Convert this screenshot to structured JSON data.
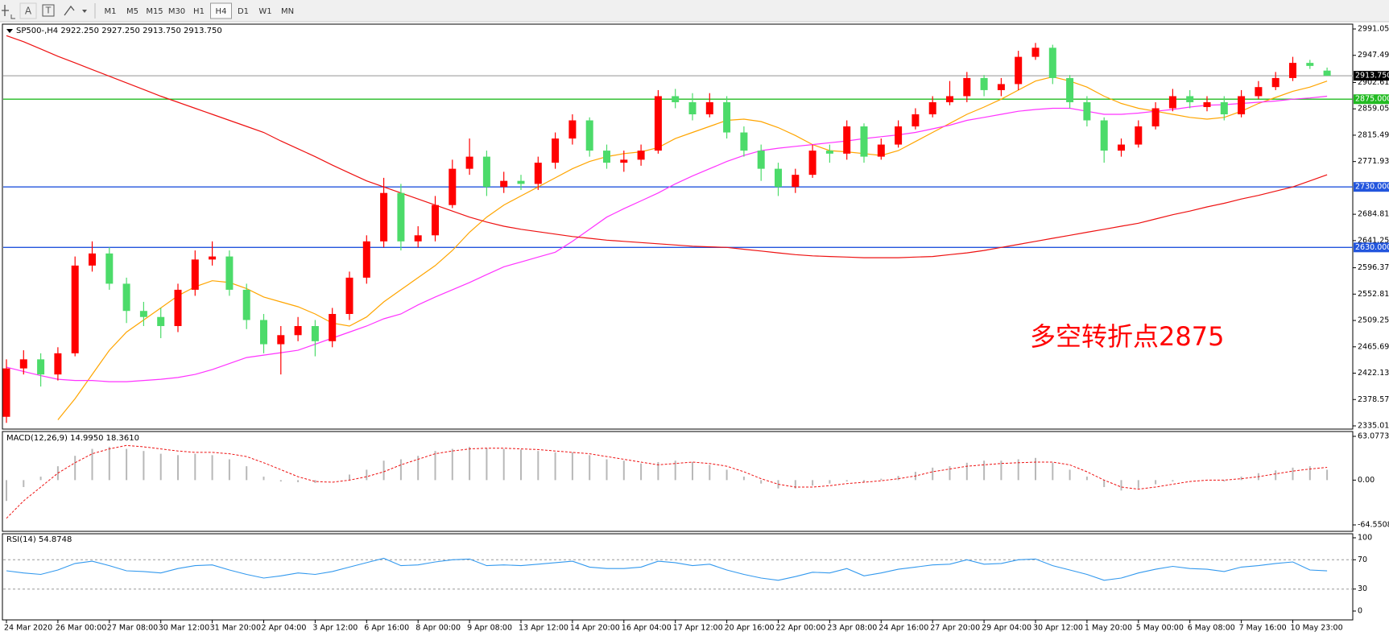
{
  "toolbar": {
    "tools": [
      "A",
      "T"
    ],
    "timeframes": [
      "M1",
      "M5",
      "M15",
      "M30",
      "H1",
      "H4",
      "D1",
      "W1",
      "MN"
    ],
    "active_timeframe": "H4"
  },
  "chart_data": [
    {
      "type": "candlestick",
      "title": "SP500-,H4  2922.250 2927.250 2913.750 2913.750",
      "annotation": "多空转折点2875",
      "annotation_color": "#ff0000",
      "categories": [
        "24 Mar 2020",
        null,
        null,
        "26 Mar 00:00",
        null,
        null,
        "27 Mar 08:00",
        null,
        null,
        "30 Mar 12:00",
        null,
        null,
        "31 Mar 20:00",
        null,
        null,
        "2 Apr 04:00",
        null,
        null,
        "3 Apr 12:00",
        null,
        null,
        "6 Apr 16:00",
        null,
        null,
        "8 Apr 00:00",
        null,
        null,
        "9 Apr 08:00",
        null,
        null,
        "13 Apr 12:00",
        null,
        null,
        "14 Apr 20:00",
        null,
        null,
        "16 Apr 04:00",
        null,
        null,
        "17 Apr 12:00",
        null,
        null,
        "20 Apr 16:00",
        null,
        null,
        "22 Apr 00:00",
        null,
        null,
        "23 Apr 08:00",
        null,
        null,
        "24 Apr 16:00",
        null,
        null,
        "27 Apr 20:00",
        null,
        null,
        "29 Apr 04:00",
        null,
        null,
        "30 Apr 12:00",
        null,
        null,
        "1 May 20:00",
        null,
        null,
        "5 May 00:00",
        null,
        null,
        "6 May 08:00",
        null,
        null,
        "7 May 16:00",
        null,
        null,
        "10 May 23:00",
        null,
        null
      ],
      "open": [
        2350,
        2430,
        2445,
        2420,
        2455,
        2600,
        2620,
        2570,
        2525,
        2515,
        2500,
        2560,
        2610,
        2615,
        2560,
        2510,
        2470,
        2485,
        2500,
        2475,
        2520,
        2580,
        2640,
        2720,
        2640,
        2650,
        2700,
        2760,
        2780,
        2730,
        2740,
        2735,
        2770,
        2810,
        2840,
        2790,
        2770,
        2775,
        2790,
        2880,
        2870,
        2850,
        2870,
        2820,
        2790,
        2760,
        2730,
        2750,
        2790,
        2785,
        2830,
        2780,
        2800,
        2830,
        2850,
        2870,
        2880,
        2910,
        2890,
        2900,
        2945,
        2960,
        2910,
        2870,
        2840,
        2790,
        2800,
        2830,
        2860,
        2880,
        2862,
        2870,
        2850,
        2880,
        2895,
        2910,
        2935,
        2922.25
      ],
      "high": [
        2445,
        2460,
        2455,
        2465,
        2615,
        2640,
        2630,
        2580,
        2540,
        2530,
        2570,
        2625,
        2640,
        2625,
        2570,
        2520,
        2500,
        2515,
        2510,
        2530,
        2590,
        2650,
        2745,
        2735,
        2665,
        2715,
        2775,
        2810,
        2790,
        2755,
        2750,
        2780,
        2820,
        2850,
        2845,
        2800,
        2790,
        2800,
        2890,
        2892,
        2885,
        2885,
        2880,
        2830,
        2800,
        2770,
        2760,
        2800,
        2800,
        2840,
        2835,
        2810,
        2840,
        2860,
        2880,
        2905,
        2920,
        2915,
        2910,
        2955,
        2968,
        2965,
        2915,
        2880,
        2845,
        2810,
        2840,
        2870,
        2892,
        2890,
        2880,
        2880,
        2890,
        2905,
        2920,
        2945,
        2940,
        2927.25
      ],
      "low": [
        2340,
        2420,
        2400,
        2410,
        2450,
        2590,
        2560,
        2505,
        2500,
        2480,
        2490,
        2550,
        2600,
        2550,
        2495,
        2455,
        2420,
        2475,
        2450,
        2465,
        2510,
        2570,
        2630,
        2625,
        2630,
        2640,
        2695,
        2750,
        2715,
        2720,
        2725,
        2725,
        2760,
        2800,
        2780,
        2760,
        2755,
        2765,
        2785,
        2860,
        2840,
        2845,
        2810,
        2780,
        2740,
        2715,
        2720,
        2745,
        2770,
        2775,
        2770,
        2775,
        2795,
        2825,
        2845,
        2865,
        2870,
        2880,
        2880,
        2890,
        2940,
        2900,
        2860,
        2830,
        2770,
        2780,
        2795,
        2825,
        2855,
        2860,
        2855,
        2840,
        2845,
        2875,
        2890,
        2905,
        2925,
        2913.75
      ],
      "close": [
        2430,
        2445,
        2420,
        2455,
        2600,
        2620,
        2570,
        2525,
        2515,
        2500,
        2560,
        2610,
        2615,
        2560,
        2510,
        2470,
        2485,
        2500,
        2475,
        2520,
        2580,
        2640,
        2720,
        2640,
        2650,
        2700,
        2760,
        2780,
        2730,
        2740,
        2735,
        2770,
        2810,
        2840,
        2790,
        2770,
        2775,
        2790,
        2880,
        2870,
        2850,
        2870,
        2820,
        2790,
        2760,
        2730,
        2750,
        2790,
        2785,
        2830,
        2780,
        2800,
        2830,
        2850,
        2870,
        2880,
        2910,
        2890,
        2900,
        2945,
        2960,
        2910,
        2870,
        2840,
        2790,
        2800,
        2830,
        2860,
        2880,
        2870,
        2870,
        2850,
        2880,
        2895,
        2910,
        2935,
        2930,
        2913.75
      ],
      "up_color": "#ff0000",
      "down_color": "#4cdb6a",
      "moving_averages": [
        {
          "color": "#ffa500",
          "values": [
            null,
            null,
            null,
            2345,
            2380,
            2420,
            2460,
            2490,
            2510,
            2530,
            2550,
            2565,
            2575,
            2572,
            2562,
            2548,
            2540,
            2532,
            2520,
            2505,
            2500,
            2515,
            2540,
            2560,
            2580,
            2600,
            2625,
            2655,
            2680,
            2700,
            2715,
            2730,
            2745,
            2760,
            2772,
            2780,
            2785,
            2788,
            2795,
            2810,
            2820,
            2830,
            2840,
            2842,
            2838,
            2828,
            2815,
            2800,
            2790,
            2788,
            2785,
            2782,
            2790,
            2805,
            2820,
            2835,
            2850,
            2862,
            2875,
            2890,
            2905,
            2912,
            2905,
            2895,
            2880,
            2868,
            2860,
            2855,
            2850,
            2845,
            2842,
            2845,
            2855,
            2868,
            2878,
            2888,
            2895,
            2905
          ]
        },
        {
          "color": "#ff33ff",
          "values": [
            2432,
            2425,
            2418,
            2412,
            2410,
            2410,
            2408,
            2408,
            2410,
            2412,
            2415,
            2420,
            2428,
            2438,
            2448,
            2452,
            2456,
            2460,
            2470,
            2480,
            2490,
            2500,
            2512,
            2520,
            2535,
            2548,
            2560,
            2572,
            2585,
            2598,
            2606,
            2614,
            2622,
            2640,
            2660,
            2680,
            2694,
            2707,
            2720,
            2735,
            2748,
            2760,
            2772,
            2782,
            2790,
            2794,
            2797,
            2800,
            2803,
            2806,
            2810,
            2813,
            2816,
            2820,
            2826,
            2832,
            2840,
            2845,
            2850,
            2855,
            2858,
            2860,
            2860,
            2855,
            2850,
            2850,
            2852,
            2855,
            2858,
            2862,
            2865,
            2866,
            2868,
            2870,
            2872,
            2875,
            2877,
            2880
          ]
        },
        {
          "color": "#ee1111",
          "values": [
            2980,
            2970,
            2958,
            2946,
            2935,
            2924,
            2913,
            2902,
            2891,
            2880,
            2870,
            2860,
            2850,
            2840,
            2830,
            2820,
            2806,
            2793,
            2780,
            2766,
            2753,
            2740,
            2730,
            2720,
            2710,
            2700,
            2690,
            2680,
            2672,
            2665,
            2660,
            2656,
            2652,
            2648,
            2645,
            2642,
            2640,
            2638,
            2636,
            2634,
            2632,
            2631,
            2630,
            2627,
            2624,
            2621,
            2618,
            2616,
            2615,
            2614,
            2613,
            2613,
            2613,
            2614,
            2615,
            2618,
            2621,
            2625,
            2630,
            2635,
            2640,
            2645,
            2650,
            2655,
            2660,
            2665,
            2670,
            2677,
            2684,
            2690,
            2697,
            2703,
            2710,
            2716,
            2723,
            2730,
            2740,
            2750
          ]
        }
      ],
      "levels": [
        {
          "value": 2913.75,
          "label": "2913.750",
          "color": "#a9a9a9",
          "box_color": "#000000"
        },
        {
          "value": 2875,
          "label": "2875.000",
          "color": "#22bb22",
          "box_color": "#22bb22"
        },
        {
          "value": 2730,
          "label": "2730.000",
          "color": "#2255dd",
          "box_color": "#2255dd"
        },
        {
          "value": 2630,
          "label": "2630.000",
          "color": "#2255dd",
          "box_color": "#2255dd"
        }
      ],
      "ylim": [
        2335.01,
        2991.05
      ],
      "yticks": [
        {
          "value": 2991.05,
          "label": "2991.050"
        },
        2947.49,
        2902.61,
        2859.05,
        2815.49,
        2771.93,
        2684.81,
        2641.25,
        2596.37,
        2552.81,
        2509.25,
        2465.69,
        2422.13,
        2378.57,
        2335.01
      ]
    },
    {
      "type": "macd",
      "title": "MACD(12,26,9) 14.9950 18.3610",
      "values": [
        -30,
        -10,
        5,
        20,
        35,
        45,
        48,
        45,
        42,
        38,
        36,
        38,
        36,
        30,
        20,
        5,
        -2,
        -3,
        -4,
        0,
        8,
        15,
        28,
        30,
        35,
        42,
        45,
        48,
        46,
        45,
        44,
        42,
        40,
        40,
        36,
        30,
        28,
        24,
        26,
        28,
        26,
        22,
        15,
        5,
        -5,
        -12,
        -12,
        -8,
        -5,
        -2,
        -3,
        2,
        6,
        12,
        18,
        20,
        25,
        28,
        28,
        30,
        32,
        25,
        15,
        5,
        -10,
        -15,
        -12,
        -6,
        -2,
        0,
        0,
        -2,
        5,
        10,
        14,
        18,
        20,
        14.995
      ],
      "signal": [
        -55,
        -30,
        -10,
        10,
        25,
        38,
        45,
        50,
        48,
        45,
        42,
        40,
        40,
        38,
        34,
        25,
        15,
        5,
        -2,
        -3,
        0,
        5,
        12,
        22,
        30,
        38,
        42,
        45,
        46,
        46,
        45,
        44,
        42,
        40,
        38,
        34,
        30,
        26,
        22,
        24,
        26,
        24,
        20,
        12,
        2,
        -6,
        -10,
        -10,
        -8,
        -5,
        -3,
        -1,
        2,
        6,
        12,
        16,
        20,
        22,
        24,
        25,
        26,
        26,
        22,
        12,
        0,
        -10,
        -13,
        -10,
        -6,
        -2,
        0,
        0,
        2,
        5,
        9,
        13,
        16,
        18.361
      ],
      "color": "#b8b8b8",
      "signal_color": "#ee1111",
      "ylim": [
        -64.5508,
        63.0773
      ],
      "yticks": [
        63.0773,
        {
          "value": 0,
          "label": "0.00"
        },
        -64.5508
      ]
    },
    {
      "type": "line",
      "title": "RSI(14) 54.8748",
      "values": [
        55,
        52,
        50,
        56,
        65,
        68,
        62,
        55,
        54,
        52,
        58,
        62,
        63,
        56,
        50,
        45,
        48,
        52,
        50,
        54,
        60,
        66,
        72,
        62,
        63,
        67,
        70,
        71,
        62,
        63,
        62,
        64,
        66,
        68,
        60,
        58,
        58,
        60,
        68,
        66,
        62,
        64,
        56,
        50,
        45,
        42,
        47,
        53,
        52,
        58,
        48,
        52,
        57,
        60,
        63,
        64,
        70,
        64,
        65,
        70,
        71,
        62,
        56,
        50,
        42,
        45,
        52,
        57,
        61,
        58,
        57,
        54,
        60,
        62,
        65,
        67,
        56,
        54.8748
      ],
      "color": "#3399ee",
      "levels": [
        70,
        30
      ],
      "ylim": [
        0,
        100
      ],
      "yticks": [
        100,
        70,
        30,
        0
      ]
    }
  ]
}
